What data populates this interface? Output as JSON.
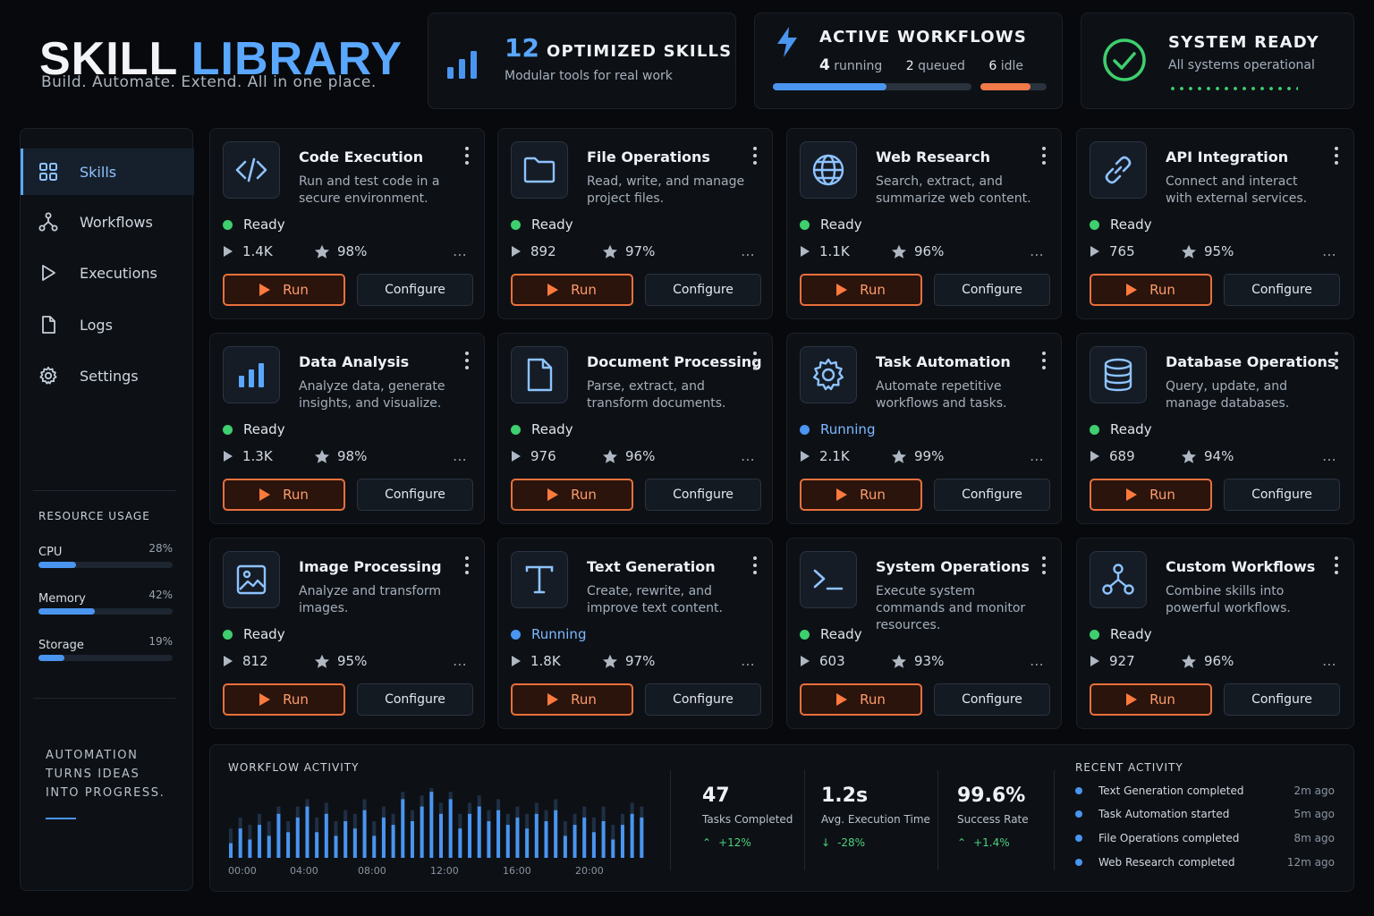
{
  "header": {
    "title_word1": "SKILL",
    "title_word2": "LIBRARY",
    "tagline": "Build. Automate. Extend. All in one place."
  },
  "stats": {
    "optimized": {
      "count": "12",
      "label": "OPTIMIZED SKILLS",
      "sub": "Modular tools for real work",
      "icon": "bar-chart-icon"
    },
    "workflows": {
      "title": "ACTIVE WORKFLOWS",
      "running_count": "4",
      "running_label": "running",
      "queued_count": "2",
      "queued_label": "queued",
      "idle_count": "6",
      "idle_label": "idle",
      "running_fraction": 0.57,
      "idle_fraction": 0.75,
      "icon": "lightning-icon"
    },
    "system": {
      "title": "SYSTEM READY",
      "sub": "All systems operational",
      "icon": "check-circle-icon"
    }
  },
  "sidebar": {
    "items": [
      {
        "label": "Skills",
        "icon": "grid-icon",
        "active": true
      },
      {
        "label": "Workflows",
        "icon": "workflow-icon",
        "active": false
      },
      {
        "label": "Executions",
        "icon": "play-outline-icon",
        "active": false
      },
      {
        "label": "Logs",
        "icon": "document-icon",
        "active": false
      },
      {
        "label": "Settings",
        "icon": "gear-icon",
        "active": false
      }
    ],
    "resource_title": "RESOURCE USAGE",
    "resources": [
      {
        "label": "CPU",
        "value": "28%",
        "fraction": 0.28
      },
      {
        "label": "Memory",
        "value": "42%",
        "fraction": 0.42
      },
      {
        "label": "Storage",
        "value": "19%",
        "fraction": 0.19
      }
    ],
    "motto": "AUTOMATION\nTURNS IDEAS\nINTO PROGRESS."
  },
  "skills": [
    {
      "name": "Code Execution",
      "desc": "Run and test code in a secure environment.",
      "status": "Ready",
      "runs": "1.4K",
      "rating": "98%",
      "icon": "code-icon"
    },
    {
      "name": "File Operations",
      "desc": "Read, write, and manage project files.",
      "status": "Ready",
      "runs": "892",
      "rating": "97%",
      "icon": "folder-icon"
    },
    {
      "name": "Web Research",
      "desc": "Search, extract, and summarize web content.",
      "status": "Ready",
      "runs": "1.1K",
      "rating": "96%",
      "icon": "globe-icon"
    },
    {
      "name": "API Integration",
      "desc": "Connect and interact with external services.",
      "status": "Ready",
      "runs": "765",
      "rating": "95%",
      "icon": "link-icon"
    },
    {
      "name": "Data Analysis",
      "desc": "Analyze data, generate insights, and visualize.",
      "status": "Ready",
      "runs": "1.3K",
      "rating": "98%",
      "icon": "bar-chart-icon"
    },
    {
      "name": "Document Processing",
      "desc": "Parse, extract, and transform documents.",
      "status": "Ready",
      "runs": "976",
      "rating": "96%",
      "icon": "document-icon"
    },
    {
      "name": "Task Automation",
      "desc": "Automate repetitive workflows and tasks.",
      "status": "Running",
      "runs": "2.1K",
      "rating": "99%",
      "icon": "gear-icon"
    },
    {
      "name": "Database Operations",
      "desc": "Query, update, and manage databases.",
      "status": "Ready",
      "runs": "689",
      "rating": "94%",
      "icon": "database-icon"
    },
    {
      "name": "Image Processing",
      "desc": "Analyze and transform images.",
      "status": "Ready",
      "runs": "812",
      "rating": "95%",
      "icon": "image-icon"
    },
    {
      "name": "Text Generation",
      "desc": "Create, rewrite, and improve text content.",
      "status": "Running",
      "runs": "1.8K",
      "rating": "97%",
      "icon": "text-icon"
    },
    {
      "name": "System Operations",
      "desc": "Execute system commands and monitor resources.",
      "status": "Ready",
      "runs": "603",
      "rating": "93%",
      "icon": "terminal-icon"
    },
    {
      "name": "Custom Workflows",
      "desc": "Combine skills into powerful workflows.",
      "status": "Ready",
      "runs": "927",
      "rating": "96%",
      "icon": "workflow-icon"
    }
  ],
  "buttons": {
    "run": "Run",
    "configure": "Configure"
  },
  "activity": {
    "title": "WORKFLOW ACTIVITY",
    "time_labels": [
      "00:00",
      "04:00",
      "08:00",
      "12:00",
      "16:00",
      "20:00"
    ],
    "kpis": [
      {
        "value": "47",
        "label": "Tasks Completed",
        "delta": "+12%",
        "direction": "up"
      },
      {
        "value": "1.2s",
        "label": "Avg. Execution Time",
        "delta": "-28%",
        "direction": "down"
      },
      {
        "value": "99.6%",
        "label": "Success Rate",
        "delta": "+1.4%",
        "direction": "up"
      }
    ],
    "recent_title": "RECENT ACTIVITY",
    "recent": [
      {
        "text": "Text Generation completed",
        "time": "2m ago"
      },
      {
        "text": "Task Automation started",
        "time": "5m ago"
      },
      {
        "text": "File Operations completed",
        "time": "8m ago"
      },
      {
        "text": "Web Research completed",
        "time": "12m ago"
      }
    ]
  },
  "chart_data": {
    "type": "bar",
    "title": "WORKFLOW ACTIVITY",
    "xlabel": "",
    "ylabel": "",
    "x_ticks": [
      "00:00",
      "04:00",
      "08:00",
      "12:00",
      "16:00",
      "20:00"
    ],
    "series": [
      {
        "values": [
          0.2,
          0.4,
          0.25,
          0.45,
          0.3,
          0.6,
          0.35,
          0.55,
          0.7,
          0.35,
          0.6,
          0.3,
          0.5,
          0.4,
          0.65,
          0.3,
          0.55,
          0.45,
          0.8,
          0.5,
          0.7,
          0.9,
          0.6,
          0.8,
          0.4,
          0.6,
          0.7,
          0.5,
          0.65,
          0.45,
          0.55,
          0.4,
          0.6,
          0.5,
          0.65,
          0.3,
          0.45,
          0.55,
          0.35,
          0.5,
          0.25,
          0.45,
          0.6,
          0.55
        ]
      },
      {
        "values": [
          0.4,
          0.55,
          0.45,
          0.6,
          0.5,
          0.7,
          0.5,
          0.7,
          0.8,
          0.55,
          0.75,
          0.5,
          0.65,
          0.6,
          0.8,
          0.5,
          0.7,
          0.6,
          0.9,
          0.65,
          0.85,
          0.95,
          0.75,
          0.9,
          0.6,
          0.75,
          0.85,
          0.65,
          0.8,
          0.6,
          0.7,
          0.6,
          0.75,
          0.65,
          0.8,
          0.5,
          0.6,
          0.7,
          0.55,
          0.7,
          0.45,
          0.6,
          0.75,
          0.7
        ]
      }
    ],
    "colors": {
      "primary": "#4a95f0",
      "secondary": "#1f2f44"
    },
    "grid": false
  },
  "colors": {
    "accent": "#5aa7ff",
    "run": "#e8703c",
    "ready": "#3ecf6e",
    "running": "#4a95f0"
  }
}
